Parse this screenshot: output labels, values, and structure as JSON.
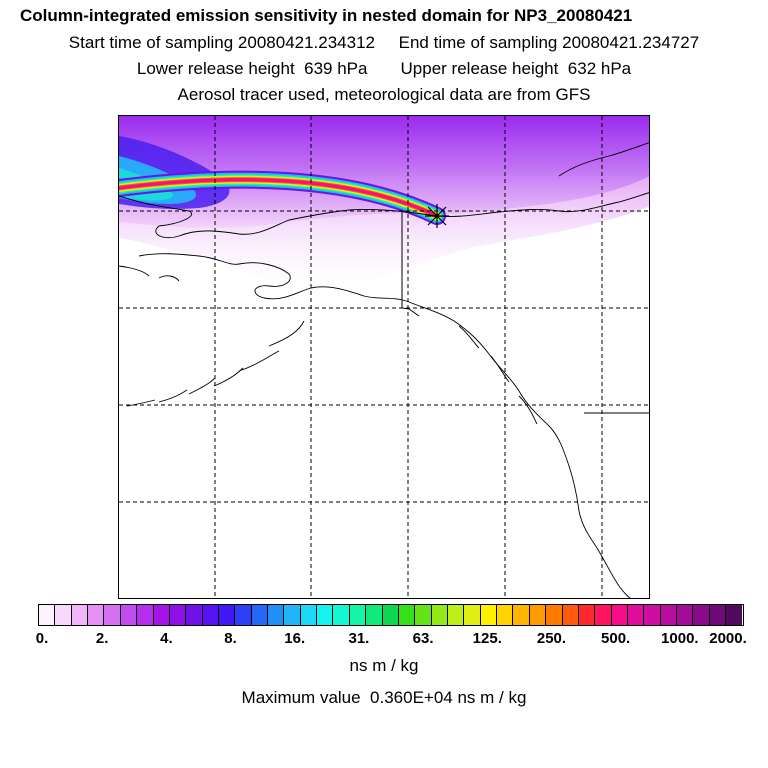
{
  "header": {
    "title": "Column-integrated emission sensitivity in nested domain for NP3_20080421",
    "sampling_start": "Start time of sampling 20080421.234312",
    "sampling_end": "End time of sampling 20080421.234727",
    "lower_release": "Lower release height  639 hPa",
    "upper_release": "Upper release height  632 hPa",
    "tracer_note": "Aerosol tracer used, meteorological data are from GFS"
  },
  "map": {
    "receptor_marker": "star-marker",
    "grid": "dashed",
    "colors": {
      "coast": "#000000",
      "grid": "#000000"
    }
  },
  "colorbar": {
    "tick_labels": [
      "0.",
      "2.",
      "4.",
      "8.",
      "16.",
      "31.",
      "63.",
      "125.",
      "250.",
      "500.",
      "1000.",
      "2000."
    ],
    "colors": [
      "#fdf2fd",
      "#f8d8fb",
      "#f0b6f8",
      "#e590f5",
      "#d770f2",
      "#c44cef",
      "#b52ded",
      "#a714ea",
      "#8e12e6",
      "#7011e6",
      "#5811f0",
      "#4019f6",
      "#2f3ff8",
      "#2468f8",
      "#1f8ff8",
      "#21b4f8",
      "#1fd8f8",
      "#17f2ee",
      "#14f7d0",
      "#14f5a6",
      "#10e878",
      "#0ed852",
      "#36e018",
      "#64e418",
      "#94ea18",
      "#bcee18",
      "#e0f014",
      "#fff000",
      "#ffd400",
      "#ffb400",
      "#ff9a00",
      "#ff7a00",
      "#ff5a10",
      "#ff2a30",
      "#ff1460",
      "#f40e8a",
      "#e00e9c",
      "#cc0ea2",
      "#b80ea0",
      "#a20c98",
      "#8a0a8c",
      "#6e0a78",
      "#520a5e"
    ],
    "units": "ns m / kg",
    "max_value": "Maximum value  0.360E+04 ns m / kg"
  }
}
